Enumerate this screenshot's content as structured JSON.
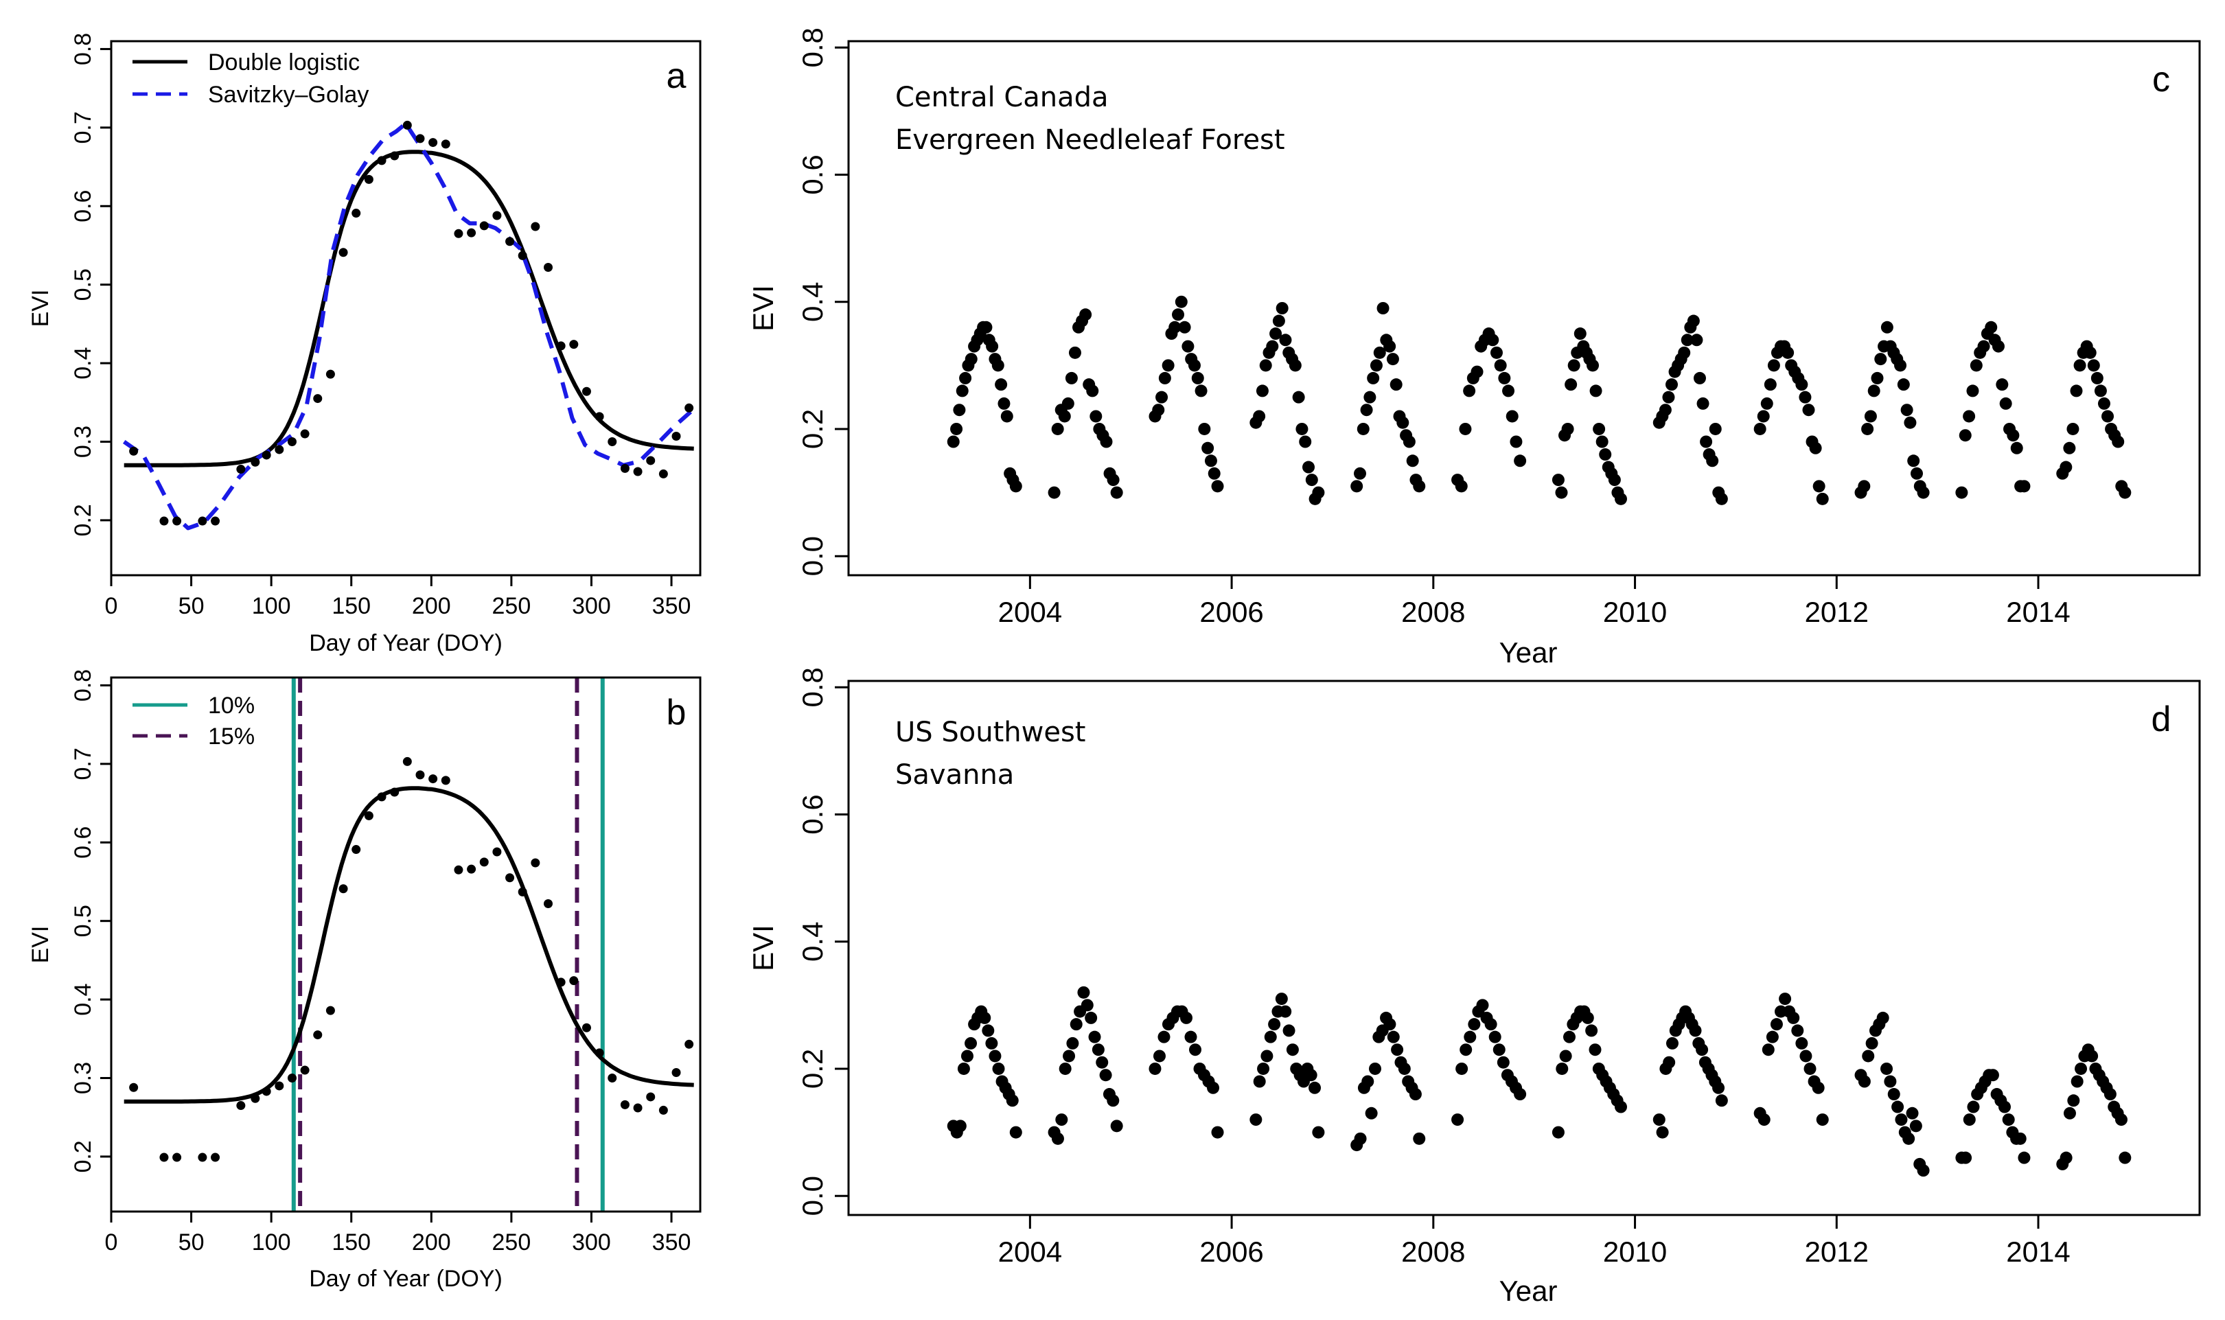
{
  "chart_data": [
    {
      "id": "a",
      "type": "scatter",
      "panel_label": "a",
      "xlabel": "Day of Year (DOY)",
      "ylabel": "EVI",
      "xlim": [
        0,
        368
      ],
      "ylim": [
        0.13,
        0.81
      ],
      "xticks": [
        0,
        50,
        100,
        150,
        200,
        250,
        300,
        350
      ],
      "yticks": [
        0.2,
        0.3,
        0.4,
        0.5,
        0.6,
        0.7,
        0.8
      ],
      "legend": {
        "position": "top-left",
        "entries": [
          {
            "label": "Double logistic",
            "style": "solid",
            "color": "#000000"
          },
          {
            "label": "Savitzky–Golay",
            "style": "dashed",
            "color": "#1a1ae6"
          }
        ]
      },
      "points": {
        "x": [
          14,
          33,
          41,
          57,
          65,
          81,
          90,
          97,
          105,
          113,
          121,
          129,
          137,
          145,
          153,
          161,
          169,
          177,
          185,
          193,
          201,
          209,
          217,
          225,
          233,
          241,
          249,
          257,
          265,
          273,
          281,
          289,
          297,
          305,
          313,
          321,
          329,
          337,
          345,
          353,
          361
        ],
        "y": [
          0.288,
          0.199,
          0.199,
          0.199,
          0.199,
          0.265,
          0.274,
          0.283,
          0.29,
          0.3,
          0.31,
          0.355,
          0.386,
          0.541,
          0.591,
          0.634,
          0.658,
          0.664,
          0.703,
          0.686,
          0.681,
          0.679,
          0.565,
          0.566,
          0.575,
          0.588,
          0.555,
          0.537,
          0.574,
          0.522,
          0.422,
          0.424,
          0.364,
          0.332,
          0.3,
          0.266,
          0.262,
          0.276,
          0.259,
          0.307,
          0.343
        ]
      },
      "series": [
        {
          "name": "Double logistic",
          "kind": "double_logistic",
          "params": {
            "base": 0.27,
            "peak": 0.675,
            "end": 0.29,
            "sos": 132,
            "k1": 0.09,
            "eos": 268,
            "k2": 0.06
          },
          "color": "#000000",
          "style": "solid"
        },
        {
          "name": "Savitzky–Golay",
          "color": "#1a1ae6",
          "style": "dashed",
          "x": [
            8,
            20,
            30,
            40,
            48,
            58,
            68,
            80,
            92,
            104,
            114,
            122,
            130,
            138,
            146,
            154,
            162,
            170,
            178,
            184,
            192,
            200,
            208,
            216,
            224,
            232,
            240,
            248,
            256,
            264,
            272,
            280,
            288,
            296,
            304,
            312,
            320,
            330,
            340,
            352,
            362
          ],
          "y": [
            0.3,
            0.283,
            0.245,
            0.205,
            0.19,
            0.197,
            0.22,
            0.255,
            0.28,
            0.295,
            0.31,
            0.345,
            0.43,
            0.54,
            0.6,
            0.64,
            0.665,
            0.685,
            0.695,
            0.705,
            0.68,
            0.655,
            0.625,
            0.59,
            0.578,
            0.578,
            0.572,
            0.56,
            0.545,
            0.5,
            0.44,
            0.39,
            0.33,
            0.296,
            0.285,
            0.278,
            0.27,
            0.275,
            0.295,
            0.32,
            0.338
          ]
        }
      ]
    },
    {
      "id": "b",
      "type": "scatter",
      "panel_label": "b",
      "xlabel": "Day of Year (DOY)",
      "ylabel": "EVI",
      "xlim": [
        0,
        368
      ],
      "ylim": [
        0.13,
        0.81
      ],
      "xticks": [
        0,
        50,
        100,
        150,
        200,
        250,
        300,
        350
      ],
      "yticks": [
        0.2,
        0.3,
        0.4,
        0.5,
        0.6,
        0.7,
        0.8
      ],
      "legend": {
        "position": "top-left",
        "entries": [
          {
            "label": "10%",
            "style": "solid",
            "color": "#169c8c"
          },
          {
            "label": "15%",
            "style": "dashed",
            "color": "#4a1454"
          }
        ]
      },
      "points": {
        "x": [
          14,
          33,
          41,
          57,
          65,
          81,
          90,
          97,
          105,
          113,
          121,
          129,
          137,
          145,
          153,
          161,
          169,
          177,
          185,
          193,
          201,
          209,
          217,
          225,
          233,
          241,
          249,
          257,
          265,
          273,
          281,
          289,
          297,
          305,
          313,
          321,
          329,
          337,
          345,
          353,
          361
        ],
        "y": [
          0.288,
          0.199,
          0.199,
          0.199,
          0.199,
          0.265,
          0.274,
          0.283,
          0.29,
          0.3,
          0.31,
          0.355,
          0.386,
          0.541,
          0.591,
          0.634,
          0.658,
          0.664,
          0.703,
          0.686,
          0.681,
          0.679,
          0.565,
          0.566,
          0.575,
          0.588,
          0.555,
          0.537,
          0.574,
          0.522,
          0.422,
          0.424,
          0.364,
          0.332,
          0.3,
          0.266,
          0.262,
          0.276,
          0.259,
          0.307,
          0.343
        ]
      },
      "series": [
        {
          "name": "Double logistic",
          "kind": "double_logistic",
          "params": {
            "base": 0.27,
            "peak": 0.675,
            "end": 0.29,
            "sos": 132,
            "k1": 0.09,
            "eos": 268,
            "k2": 0.06
          },
          "color": "#000000",
          "style": "solid"
        }
      ],
      "vlines": [
        {
          "label": "10%",
          "x": 114,
          "color": "#169c8c",
          "style": "solid"
        },
        {
          "label": "15%",
          "x": 118,
          "color": "#4a1454",
          "style": "dashed"
        },
        {
          "label": "15%",
          "x": 291,
          "color": "#4a1454",
          "style": "dashed"
        },
        {
          "label": "10%",
          "x": 307,
          "color": "#169c8c",
          "style": "solid"
        }
      ]
    },
    {
      "id": "c",
      "type": "scatter",
      "panel_label": "c",
      "xlabel": "Year",
      "ylabel": "EVI",
      "xlim": [
        2002.2,
        2015.6
      ],
      "ylim": [
        -0.03,
        0.81
      ],
      "xticks": [
        2004,
        2006,
        2008,
        2010,
        2012,
        2014
      ],
      "yticks": [
        0.0,
        0.2,
        0.4,
        0.6,
        0.8
      ],
      "annotation": [
        "Central Canada",
        "Evergreen Needleleaf Forest"
      ],
      "seasons": [
        {
          "year": 2003,
          "start": 0.18,
          "rise": [
            0.2,
            0.23,
            0.26,
            0.28,
            0.3,
            0.31,
            0.33,
            0.34,
            0.35,
            0.36,
            0.36
          ],
          "fall": [
            0.34,
            0.33,
            0.31,
            0.3,
            0.27,
            0.24,
            0.22,
            0.13,
            0.12,
            0.11
          ]
        },
        {
          "year": 2004,
          "start": 0.1,
          "rise": [
            0.2,
            0.23,
            0.22,
            0.24,
            0.28,
            0.32,
            0.36,
            0.37,
            0.38
          ],
          "fall": [
            0.27,
            0.26,
            0.22,
            0.2,
            0.19,
            0.18,
            0.13,
            0.12,
            0.1
          ]
        },
        {
          "year": 2005,
          "start": 0.22,
          "rise": [
            0.23,
            0.25,
            0.28,
            0.3,
            0.35,
            0.36,
            0.38,
            0.4
          ],
          "fall": [
            0.36,
            0.33,
            0.31,
            0.3,
            0.28,
            0.26,
            0.2,
            0.17,
            0.15,
            0.13,
            0.11
          ]
        },
        {
          "year": 2006,
          "start": 0.21,
          "rise": [
            0.22,
            0.26,
            0.3,
            0.32,
            0.33,
            0.35,
            0.37,
            0.39
          ],
          "fall": [
            0.34,
            0.32,
            0.31,
            0.3,
            0.25,
            0.2,
            0.18,
            0.14,
            0.12,
            0.09,
            0.1
          ]
        },
        {
          "year": 2007,
          "start": 0.11,
          "rise": [
            0.13,
            0.2,
            0.23,
            0.25,
            0.28,
            0.3,
            0.32,
            0.39
          ],
          "fall": [
            0.34,
            0.33,
            0.31,
            0.27,
            0.22,
            0.21,
            0.19,
            0.18,
            0.15,
            0.12,
            0.11
          ]
        },
        {
          "year": 2008,
          "start": 0.12,
          "rise": [
            0.11,
            0.2,
            0.26,
            0.28,
            0.29,
            0.33,
            0.34,
            0.35
          ],
          "fall": [
            0.34,
            0.32,
            0.3,
            0.28,
            0.26,
            0.22,
            0.18,
            0.15
          ]
        },
        {
          "year": 2009,
          "start": 0.12,
          "rise": [
            0.1,
            0.19,
            0.2,
            0.27,
            0.3,
            0.32,
            0.35,
            0.33
          ],
          "fall": [
            0.32,
            0.31,
            0.3,
            0.26,
            0.2,
            0.18,
            0.16,
            0.14,
            0.13,
            0.12,
            0.1,
            0.09
          ]
        },
        {
          "year": 2010,
          "start": 0.21,
          "rise": [
            0.22,
            0.23,
            0.25,
            0.27,
            0.29,
            0.3,
            0.31,
            0.32,
            0.34,
            0.36,
            0.37
          ],
          "fall": [
            0.34,
            0.28,
            0.24,
            0.18,
            0.16,
            0.15,
            0.2,
            0.1,
            0.09
          ]
        },
        {
          "year": 2011,
          "start": 0.2,
          "rise": [
            0.22,
            0.24,
            0.27,
            0.3,
            0.32,
            0.33,
            0.33,
            0.32
          ],
          "fall": [
            0.3,
            0.29,
            0.28,
            0.27,
            0.25,
            0.23,
            0.18,
            0.17,
            0.11,
            0.09
          ]
        },
        {
          "year": 2012,
          "start": 0.1,
          "rise": [
            0.11,
            0.2,
            0.22,
            0.26,
            0.28,
            0.31,
            0.33,
            0.36
          ],
          "fall": [
            0.33,
            0.32,
            0.31,
            0.3,
            0.27,
            0.23,
            0.21,
            0.15,
            0.13,
            0.11,
            0.1
          ]
        },
        {
          "year": 2013,
          "start": 0.1,
          "rise": [
            0.19,
            0.22,
            0.26,
            0.3,
            0.32,
            0.33,
            0.35,
            0.36
          ],
          "fall": [
            0.34,
            0.33,
            0.27,
            0.24,
            0.2,
            0.19,
            0.17,
            0.11,
            0.11
          ]
        },
        {
          "year": 2014,
          "start": 0.13,
          "rise": [
            0.14,
            0.17,
            0.2,
            0.26,
            0.3,
            0.32,
            0.33
          ],
          "fall": [
            0.32,
            0.3,
            0.28,
            0.26,
            0.24,
            0.22,
            0.2,
            0.19,
            0.18,
            0.11,
            0.1
          ]
        }
      ]
    },
    {
      "id": "d",
      "type": "scatter",
      "panel_label": "d",
      "xlabel": "Year",
      "ylabel": "EVI",
      "xlim": [
        2002.2,
        2015.6
      ],
      "ylim": [
        -0.03,
        0.81
      ],
      "xticks": [
        2004,
        2006,
        2008,
        2010,
        2012,
        2014
      ],
      "yticks": [
        0.0,
        0.2,
        0.4,
        0.6,
        0.8
      ],
      "annotation": [
        "US Southwest",
        "Savanna"
      ],
      "seasons": [
        {
          "year": 2003,
          "start": 0.11,
          "rise": [
            0.1,
            0.11,
            0.2,
            0.22,
            0.24,
            0.27,
            0.28,
            0.29
          ],
          "fall": [
            0.28,
            0.26,
            0.24,
            0.22,
            0.2,
            0.18,
            0.17,
            0.16,
            0.15,
            0.1
          ]
        },
        {
          "year": 2004,
          "start": 0.1,
          "rise": [
            0.09,
            0.12,
            0.2,
            0.22,
            0.24,
            0.27,
            0.29,
            0.32
          ],
          "fall": [
            0.3,
            0.28,
            0.25,
            0.23,
            0.21,
            0.19,
            0.16,
            0.15,
            0.11
          ]
        },
        {
          "year": 2005,
          "start": 0.2,
          "rise": [
            0.22,
            0.25,
            0.27,
            0.28,
            0.29,
            0.29
          ],
          "fall": [
            0.28,
            0.25,
            0.23,
            0.2,
            0.19,
            0.18,
            0.17,
            0.1
          ]
        },
        {
          "year": 2006,
          "start": 0.12,
          "rise": [
            0.18,
            0.2,
            0.22,
            0.25,
            0.27,
            0.29,
            0.31
          ],
          "fall": [
            0.29,
            0.26,
            0.23,
            0.2,
            0.19,
            0.18,
            0.2,
            0.19,
            0.17,
            0.1
          ]
        },
        {
          "year": 2007,
          "start": 0.08,
          "rise": [
            0.09,
            0.17,
            0.18,
            0.13,
            0.2,
            0.25,
            0.26,
            0.28
          ],
          "fall": [
            0.27,
            0.25,
            0.23,
            0.21,
            0.2,
            0.18,
            0.17,
            0.16,
            0.09
          ]
        },
        {
          "year": 2008,
          "start": 0.12,
          "rise": [
            0.2,
            0.23,
            0.25,
            0.27,
            0.29,
            0.3
          ],
          "fall": [
            0.28,
            0.27,
            0.25,
            0.23,
            0.21,
            0.19,
            0.18,
            0.17,
            0.16
          ]
        },
        {
          "year": 2009,
          "start": 0.1,
          "rise": [
            0.2,
            0.22,
            0.25,
            0.27,
            0.28,
            0.29,
            0.29
          ],
          "fall": [
            0.28,
            0.26,
            0.23,
            0.2,
            0.19,
            0.18,
            0.17,
            0.16,
            0.15,
            0.14
          ]
        },
        {
          "year": 2010,
          "start": 0.12,
          "rise": [
            0.1,
            0.2,
            0.21,
            0.24,
            0.26,
            0.27,
            0.28,
            0.29
          ],
          "fall": [
            0.28,
            0.27,
            0.26,
            0.24,
            0.23,
            0.21,
            0.2,
            0.19,
            0.18,
            0.17,
            0.15
          ]
        },
        {
          "year": 2011,
          "start": 0.13,
          "rise": [
            0.12,
            0.23,
            0.25,
            0.27,
            0.29,
            0.31
          ],
          "fall": [
            0.29,
            0.28,
            0.26,
            0.24,
            0.22,
            0.2,
            0.18,
            0.17,
            0.12
          ]
        },
        {
          "year": 2012,
          "start": 0.19,
          "rise": [
            0.18,
            0.22,
            0.24,
            0.26,
            0.27,
            0.28
          ],
          "fall": [
            0.2,
            0.18,
            0.16,
            0.14,
            0.12,
            0.1,
            0.09,
            0.13,
            0.11,
            0.05,
            0.04
          ]
        },
        {
          "year": 2013,
          "start": 0.06,
          "rise": [
            0.06,
            0.12,
            0.14,
            0.16,
            0.17,
            0.18,
            0.19,
            0.19
          ],
          "fall": [
            0.16,
            0.15,
            0.14,
            0.12,
            0.1,
            0.09,
            0.09,
            0.06
          ]
        },
        {
          "year": 2014,
          "start": 0.05,
          "rise": [
            0.06,
            0.13,
            0.15,
            0.18,
            0.2,
            0.22,
            0.23
          ],
          "fall": [
            0.22,
            0.2,
            0.19,
            0.18,
            0.17,
            0.16,
            0.14,
            0.13,
            0.12,
            0.06
          ]
        }
      ]
    }
  ]
}
